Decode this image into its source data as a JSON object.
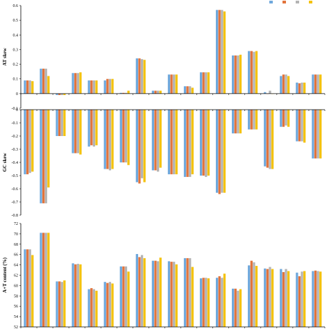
{
  "chart_data": [
    {
      "type": "bar",
      "ylabel": "AT skew",
      "ylim": [
        -0.1,
        0.6
      ],
      "yticks": [
        -0.1,
        0,
        0.1,
        0.2,
        0.3,
        0.4,
        0.5,
        0.6
      ],
      "grid": false,
      "legend": "top-right",
      "series": [
        {
          "name": "H0",
          "values": [
            0.09,
            0.17,
            -0.01,
            0.14,
            0.09,
            0.09,
            0.005,
            0.24,
            0.02,
            0.13,
            0.05,
            0.145,
            0.57,
            0.26,
            0.29,
            0.01,
            0.12,
            0.075,
            0.13
          ]
        },
        {
          "name": "H1",
          "values": [
            0.09,
            0.17,
            -0.01,
            0.14,
            0.09,
            0.1,
            0.005,
            0.24,
            0.02,
            0.13,
            0.05,
            0.145,
            0.57,
            0.26,
            0.29,
            0.0,
            0.13,
            0.07,
            0.13
          ]
        },
        {
          "name": "H2",
          "values": [
            0.09,
            0.17,
            -0.01,
            0.14,
            0.09,
            0.1,
            0.005,
            0.235,
            0.02,
            0.13,
            0.05,
            0.145,
            0.57,
            0.26,
            0.285,
            0.02,
            0.13,
            0.075,
            0.13
          ]
        },
        {
          "name": "H3",
          "values": [
            0.085,
            0.12,
            -0.01,
            0.145,
            0.09,
            0.1,
            0.02,
            0.23,
            0.02,
            0.13,
            0.04,
            0.145,
            0.56,
            0.265,
            0.29,
            0.0,
            0.12,
            0.075,
            0.13
          ]
        }
      ]
    },
    {
      "type": "bar",
      "ylabel": "GC skew",
      "ylim": [
        -0.8,
        0
      ],
      "yticks": [
        -0.8,
        -0.7,
        -0.6,
        -0.5,
        -0.4,
        -0.3,
        -0.2,
        -0.1,
        0
      ],
      "grid": false,
      "series": [
        {
          "name": "H0",
          "values": [
            -0.49,
            -0.71,
            -0.2,
            -0.33,
            -0.28,
            -0.45,
            -0.4,
            -0.55,
            -0.46,
            -0.49,
            -0.51,
            -0.5,
            -0.63,
            -0.18,
            -0.15,
            -0.43,
            -0.13,
            -0.24,
            -0.37
          ]
        },
        {
          "name": "H1",
          "values": [
            -0.49,
            -0.71,
            -0.2,
            -0.33,
            -0.27,
            -0.45,
            -0.4,
            -0.56,
            -0.46,
            -0.49,
            -0.51,
            -0.5,
            -0.64,
            -0.18,
            -0.15,
            -0.44,
            -0.13,
            -0.24,
            -0.37
          ]
        },
        {
          "name": "H2",
          "values": [
            -0.48,
            -0.71,
            -0.2,
            -0.33,
            -0.28,
            -0.46,
            -0.4,
            -0.52,
            -0.47,
            -0.49,
            -0.51,
            -0.51,
            -0.63,
            -0.18,
            -0.15,
            -0.45,
            -0.12,
            -0.24,
            -0.37
          ]
        },
        {
          "name": "H3",
          "values": [
            -0.47,
            -0.59,
            -0.2,
            -0.34,
            -0.27,
            -0.45,
            -0.42,
            -0.55,
            -0.44,
            -0.49,
            -0.49,
            -0.5,
            -0.63,
            -0.18,
            -0.15,
            -0.45,
            -0.13,
            -0.25,
            -0.37
          ]
        }
      ]
    },
    {
      "type": "bar",
      "ylabel": "A+T content (%)",
      "ylim": [
        52,
        72
      ],
      "yticks": [
        52,
        54,
        56,
        58,
        60,
        62,
        64,
        66,
        68,
        70,
        72
      ],
      "grid": false,
      "series": [
        {
          "name": "H0",
          "values": [
            67.0,
            70.2,
            60.8,
            64.3,
            59.3,
            60.7,
            63.7,
            66.1,
            64.8,
            64.7,
            65.3,
            61.4,
            61.5,
            59.4,
            63.9,
            63.3,
            63.2,
            62.5,
            62.8
          ]
        },
        {
          "name": "H1",
          "values": [
            67.0,
            70.2,
            60.8,
            64.1,
            59.5,
            60.5,
            63.7,
            65.5,
            64.8,
            64.6,
            65.3,
            61.5,
            61.8,
            59.4,
            64.8,
            63.2,
            62.6,
            61.8,
            62.9
          ]
        },
        {
          "name": "H2",
          "values": [
            67.0,
            70.2,
            60.7,
            64.2,
            59.3,
            60.7,
            63.7,
            65.9,
            64.7,
            64.6,
            65.3,
            61.5,
            61.5,
            59.0,
            64.5,
            63.6,
            63.2,
            62.7,
            62.8
          ]
        },
        {
          "name": "H3",
          "values": [
            65.9,
            70.2,
            61.0,
            64.1,
            59.0,
            60.4,
            62.7,
            65.3,
            65.4,
            64.1,
            63.6,
            61.4,
            62.3,
            59.3,
            63.8,
            63.2,
            62.8,
            62.8,
            62.7
          ]
        }
      ]
    }
  ],
  "colors": [
    "#6fa8dc",
    "#e2733b",
    "#b4b4b4",
    "#f4c20d"
  ]
}
